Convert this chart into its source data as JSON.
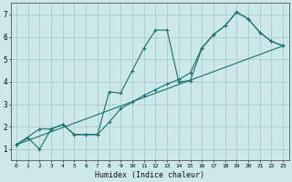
{
  "xlabel": "Humidex (Indice chaleur)",
  "xlim": [
    -0.5,
    23.5
  ],
  "ylim": [
    0.5,
    7.5
  ],
  "xticks": [
    0,
    1,
    2,
    3,
    4,
    5,
    6,
    7,
    8,
    9,
    10,
    11,
    12,
    13,
    14,
    15,
    16,
    17,
    18,
    19,
    20,
    21,
    22,
    23
  ],
  "yticks": [
    1,
    2,
    3,
    4,
    5,
    6,
    7
  ],
  "bg_color": "#cce8e8",
  "grid_color": "#aacccc",
  "line_color": "#1a7070",
  "lines": [
    {
      "x": [
        0,
        1,
        2,
        3,
        4,
        5,
        6,
        7,
        8,
        9,
        10,
        11,
        12,
        13,
        14,
        15,
        16,
        17,
        18,
        19,
        20,
        21,
        22,
        23
      ],
      "y": [
        1.2,
        1.5,
        1.0,
        1.9,
        2.1,
        1.65,
        1.65,
        1.65,
        3.55,
        3.5,
        4.5,
        5.5,
        6.3,
        6.3,
        4.0,
        4.05,
        5.5,
        6.1,
        6.5,
        7.1,
        6.8,
        6.2,
        5.8,
        5.6
      ],
      "marker": true
    },
    {
      "x": [
        0,
        2,
        3,
        4,
        5,
        6,
        7,
        8,
        9,
        10,
        11,
        12,
        13,
        14,
        15,
        16,
        17,
        18,
        19,
        20,
        21,
        22,
        23
      ],
      "y": [
        1.2,
        1.9,
        1.9,
        2.1,
        1.65,
        1.65,
        1.65,
        2.2,
        2.8,
        3.1,
        3.4,
        3.65,
        3.9,
        4.1,
        4.4,
        5.5,
        6.1,
        6.5,
        7.1,
        6.8,
        6.2,
        5.8,
        5.6
      ],
      "marker": true
    },
    {
      "x": [
        0,
        23
      ],
      "y": [
        1.2,
        5.6
      ],
      "marker": false
    }
  ]
}
